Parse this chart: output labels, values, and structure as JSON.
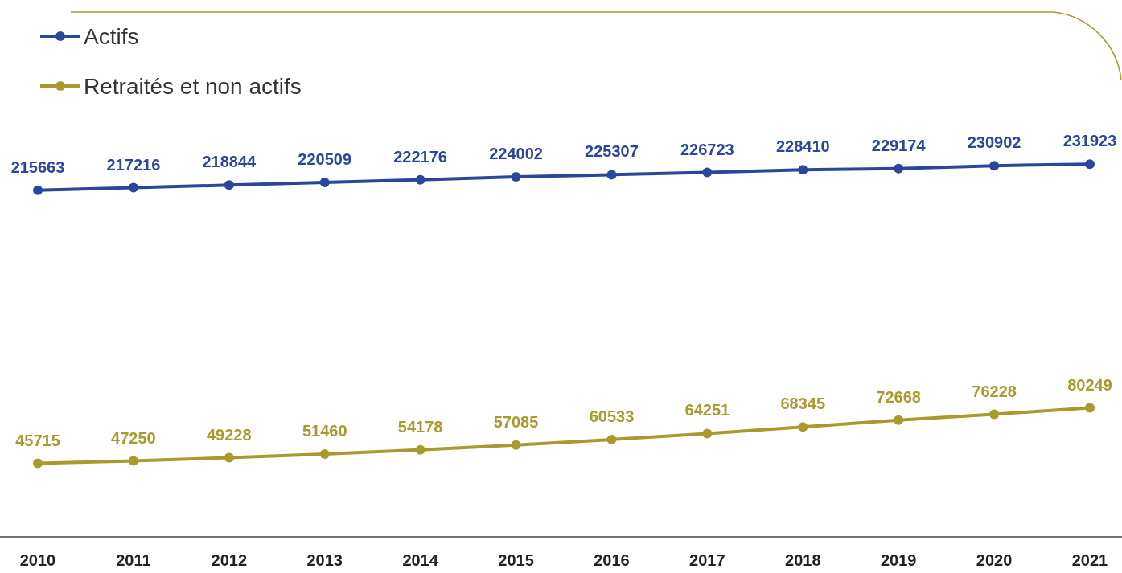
{
  "chart_data": {
    "type": "line",
    "categories": [
      "2010",
      "2011",
      "2012",
      "2013",
      "2014",
      "2015",
      "2016",
      "2017",
      "2018",
      "2019",
      "2020",
      "2021"
    ],
    "series": [
      {
        "name": "Actifs",
        "color": "#2a479b",
        "values": [
          215663,
          217216,
          218844,
          220509,
          222176,
          224002,
          225307,
          226723,
          228410,
          229174,
          230902,
          231923
        ]
      },
      {
        "name": "Retraités et non actifs",
        "color": "#a99a2d",
        "values": [
          45715,
          47250,
          49228,
          51460,
          54178,
          57085,
          60533,
          64251,
          68345,
          72668,
          76228,
          80249
        ]
      }
    ],
    "data_labels": true,
    "legend": "top left",
    "marker": "circle",
    "line_style": "solid"
  }
}
